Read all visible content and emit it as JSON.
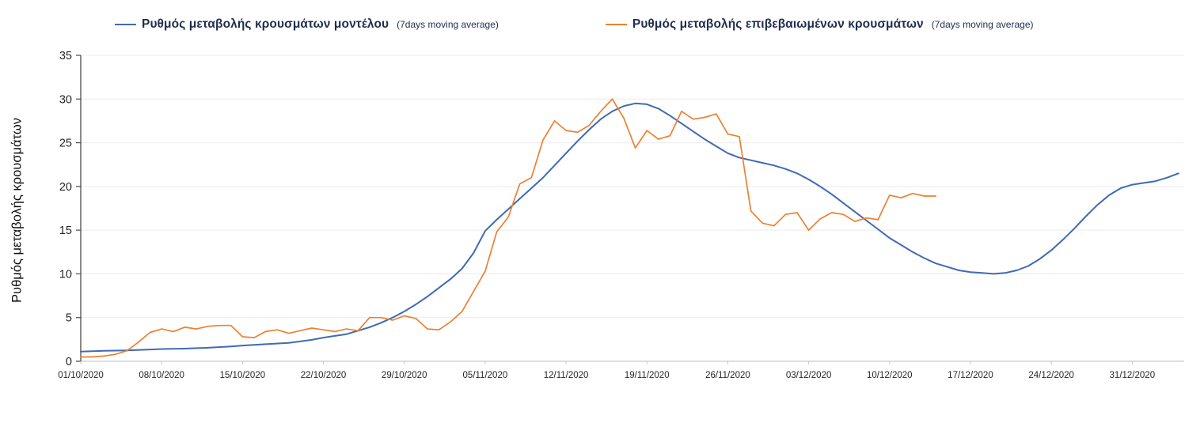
{
  "colors": {
    "background": "#ffffff",
    "grid": "#ececec",
    "axis_left": "#4a4a4a",
    "axis_bottom": "#c9c9c9",
    "tick_text": "#262626",
    "legend_text": "#1f2d50",
    "blue_series": "#3f6ab4",
    "orange_series": "#ec8032"
  },
  "chart_data": {
    "type": "line",
    "title": "",
    "xlabel": "",
    "ylabel": "Ρυθμός μεταβολής κρουσμάτων",
    "ylim": [
      0,
      35
    ],
    "yticks": [
      0,
      5,
      10,
      15,
      20,
      25,
      30,
      35
    ],
    "xlim": [
      0,
      95.5
    ],
    "grid": "horizontal",
    "legend_position": "top",
    "x_ticks": [
      {
        "pos": 0,
        "label": "01/10/2020"
      },
      {
        "pos": 7,
        "label": "08/10/2020"
      },
      {
        "pos": 14,
        "label": "15/10/2020"
      },
      {
        "pos": 21,
        "label": "22/10/2020"
      },
      {
        "pos": 28,
        "label": "29/10/2020"
      },
      {
        "pos": 35,
        "label": "05/11/2020"
      },
      {
        "pos": 42,
        "label": "12/11/2020"
      },
      {
        "pos": 49,
        "label": "19/11/2020"
      },
      {
        "pos": 56,
        "label": "26/11/2020"
      },
      {
        "pos": 63,
        "label": "03/12/2020"
      },
      {
        "pos": 70,
        "label": "10/12/2020"
      },
      {
        "pos": 77,
        "label": "17/12/2020"
      },
      {
        "pos": 84,
        "label": "24/12/2020"
      },
      {
        "pos": 91,
        "label": "31/12/2020"
      }
    ],
    "series": [
      {
        "name": "Ρυθμός μεταβολής κρουσμάτων μοντέλου",
        "name_suffix": "(7days moving average)",
        "color": "#3f6ab4",
        "width": 2,
        "x": [
          0,
          2,
          4,
          6,
          7,
          9,
          11,
          13,
          14,
          16,
          18,
          20,
          21,
          22,
          23,
          24,
          25,
          26,
          27,
          28,
          29,
          30,
          31,
          32,
          33,
          34,
          35,
          36,
          37,
          38,
          39,
          40,
          41,
          42,
          43,
          44,
          45,
          46,
          47,
          48,
          49,
          50,
          51,
          52,
          53,
          54,
          55,
          56,
          57,
          58,
          59,
          60,
          61,
          62,
          63,
          64,
          65,
          66,
          67,
          68,
          69,
          70,
          71,
          72,
          73,
          74,
          75,
          76,
          77,
          78,
          79,
          80,
          81,
          82,
          83,
          84,
          85,
          86,
          87,
          88,
          89,
          90,
          91,
          92,
          93,
          94,
          95
        ],
        "values": [
          1.1,
          1.2,
          1.25,
          1.35,
          1.4,
          1.45,
          1.55,
          1.7,
          1.8,
          1.95,
          2.1,
          2.45,
          2.7,
          2.9,
          3.1,
          3.5,
          3.9,
          4.4,
          5.0,
          5.7,
          6.5,
          7.4,
          8.4,
          9.4,
          10.6,
          12.4,
          14.9,
          16.2,
          17.4,
          18.6,
          19.8,
          21.0,
          22.4,
          23.8,
          25.2,
          26.5,
          27.7,
          28.6,
          29.2,
          29.5,
          29.4,
          28.9,
          28.1,
          27.2,
          26.3,
          25.4,
          24.6,
          23.8,
          23.3,
          23.0,
          22.7,
          22.4,
          22.0,
          21.5,
          20.8,
          20.0,
          19.1,
          18.1,
          17.1,
          16.1,
          15.1,
          14.1,
          13.3,
          12.5,
          11.8,
          11.2,
          10.8,
          10.4,
          10.2,
          10.1,
          10.0,
          10.1,
          10.4,
          10.9,
          11.7,
          12.7,
          13.9,
          15.2,
          16.6,
          17.9,
          19.0,
          19.8,
          20.2,
          20.4,
          20.6,
          21.0,
          21.5
        ]
      },
      {
        "name": "Ρυθμός μεταβολής επιβεβαιωμένων κρουσμάτων",
        "name_suffix": "(7days moving average)",
        "color": "#ec8032",
        "width": 1.7,
        "x": [
          0,
          1,
          2,
          3,
          4,
          5,
          6,
          7,
          8,
          9,
          10,
          11,
          12,
          13,
          14,
          15,
          16,
          17,
          18,
          19,
          20,
          21,
          22,
          23,
          24,
          25,
          26,
          27,
          28,
          29,
          30,
          31,
          32,
          33,
          34,
          35,
          36,
          37,
          38,
          39,
          40,
          41,
          42,
          43,
          44,
          45,
          46,
          47,
          48,
          49,
          50,
          51,
          52,
          53,
          54,
          55,
          56,
          57,
          58,
          59,
          60,
          61,
          62,
          63,
          64,
          65,
          66,
          67,
          68,
          69,
          70,
          71,
          72,
          73,
          74
        ],
        "values": [
          0.5,
          0.5,
          0.6,
          0.8,
          1.2,
          2.2,
          3.3,
          3.7,
          3.4,
          3.9,
          3.7,
          4.0,
          4.1,
          4.1,
          2.8,
          2.7,
          3.4,
          3.6,
          3.2,
          3.5,
          3.8,
          3.6,
          3.4,
          3.7,
          3.5,
          5.0,
          5.0,
          4.7,
          5.2,
          4.9,
          3.7,
          3.6,
          4.5,
          5.7,
          8.0,
          10.3,
          14.8,
          16.5,
          20.3,
          21.0,
          25.3,
          27.5,
          26.4,
          26.2,
          27.0,
          28.6,
          30.0,
          27.8,
          24.4,
          26.4,
          25.4,
          25.8,
          28.6,
          27.7,
          27.9,
          28.3,
          26.0,
          25.7,
          17.2,
          15.8,
          15.5,
          16.8,
          17.0,
          15.0,
          16.3,
          17.0,
          16.8,
          16.0,
          16.4,
          16.2,
          19.0,
          18.7,
          19.2,
          18.9,
          18.9
        ]
      }
    ]
  }
}
